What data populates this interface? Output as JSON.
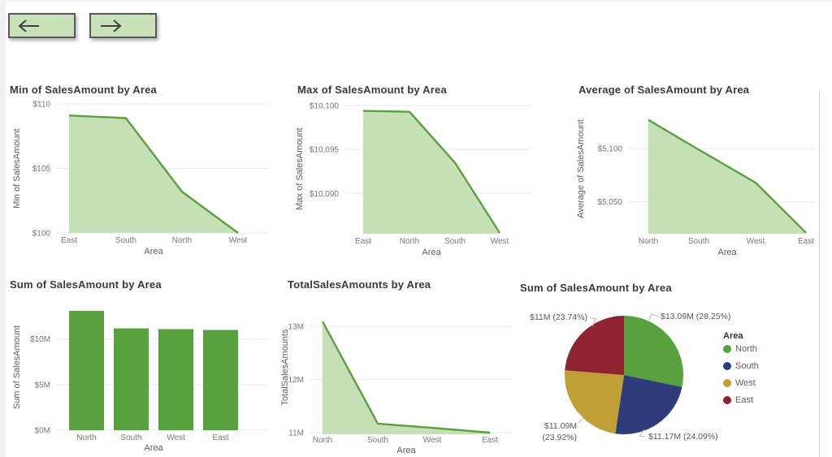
{
  "nav": {
    "back_icon": "left-arrow-icon",
    "forward_icon": "right-arrow-icon",
    "button_bg": "#c8e1b8",
    "button_border": "#595959"
  },
  "theme": {
    "line_green": "#5ba03e",
    "area_fill": "#c5dfb6",
    "bar_green": "#57a23c",
    "title_color": "#3a3a38",
    "tick_color": "#777777",
    "axis_title_color": "#605e5c",
    "leader_color": "#b9b9b9",
    "gridline_color": "#e9e9e9"
  },
  "chart_data": [
    {
      "type": "area",
      "title": "Min of SalesAmount by Area",
      "xlabel": "Area",
      "ylabel": "Min of SalesAmount",
      "categories": [
        "East",
        "South",
        "North",
        "West"
      ],
      "values": [
        109.1,
        108.9,
        103.2,
        100
      ],
      "ylim": [
        100,
        110
      ],
      "yticks": [
        {
          "v": 100,
          "label": "$100"
        },
        {
          "v": 105,
          "label": "$105"
        },
        {
          "v": 110,
          "label": "$110"
        }
      ]
    },
    {
      "type": "area",
      "title": "Max of SalesAmount by Area",
      "xlabel": "Area",
      "ylabel": "Max of SalesAmount",
      "categories": [
        "East",
        "North",
        "South",
        "West"
      ],
      "values": [
        10099.4,
        10099.3,
        10093.5,
        10085.5
      ],
      "ylim": [
        10085.4,
        10100.2
      ],
      "yticks": [
        {
          "v": 10090,
          "label": "$10,090"
        },
        {
          "v": 10095,
          "label": "$10,095"
        },
        {
          "v": 10100,
          "label": "$10,100"
        }
      ]
    },
    {
      "type": "area",
      "title": "Average of SalesAmount by Area",
      "xlabel": "Area",
      "ylabel": "Average of SalesAmount",
      "categories": [
        "North",
        "South",
        "West",
        "East"
      ],
      "values": [
        5127,
        5099,
        5068,
        5021
      ],
      "ylim": [
        5020,
        5142
      ],
      "yticks": [
        {
          "v": 5050,
          "label": "$5,050"
        },
        {
          "v": 5100,
          "label": "$5,100"
        }
      ]
    },
    {
      "type": "bar",
      "title": "Sum of SalesAmount by Area",
      "xlabel": "Area",
      "ylabel": "Sum of SalesAmount",
      "categories": [
        "North",
        "South",
        "West",
        "East"
      ],
      "values": [
        13.09,
        11.17,
        11.09,
        11.0
      ],
      "ylim": [
        0,
        13.8
      ],
      "yticks": [
        {
          "v": 0,
          "label": "$0M"
        },
        {
          "v": 5,
          "label": "$5M"
        },
        {
          "v": 10,
          "label": "$10M"
        }
      ]
    },
    {
      "type": "area",
      "title": "TotalSalesAmounts by Area",
      "xlabel": "Area",
      "ylabel": "TotalSalesAmounts",
      "categories": [
        "North",
        "South",
        "West",
        "East"
      ],
      "values": [
        13.09,
        11.17,
        11.09,
        11.0
      ],
      "ylim": [
        10.97,
        13.49
      ],
      "yticks": [
        {
          "v": 11,
          "label": "11M"
        },
        {
          "v": 12,
          "label": "12M"
        },
        {
          "v": 13,
          "label": "13M"
        }
      ]
    },
    {
      "type": "pie",
      "title": "Sum of SalesAmount by Area",
      "legend_title": "Area",
      "slices": [
        {
          "name": "North",
          "value_label": "$13.09M",
          "percent": 28.25,
          "percent_label": "(28.25%)",
          "color": "#57a23c"
        },
        {
          "name": "South",
          "value_label": "$11.17M",
          "percent": 24.09,
          "percent_label": "(24.09%)",
          "color": "#303d7c"
        },
        {
          "name": "West",
          "value_label": "$11.09M",
          "percent": 23.92,
          "percent_label": "(23.92%)",
          "color": "#c0a034"
        },
        {
          "name": "East",
          "value_label": "$11M",
          "percent": 23.74,
          "percent_label": "(23.74%)",
          "color": "#8e2430"
        }
      ]
    }
  ]
}
